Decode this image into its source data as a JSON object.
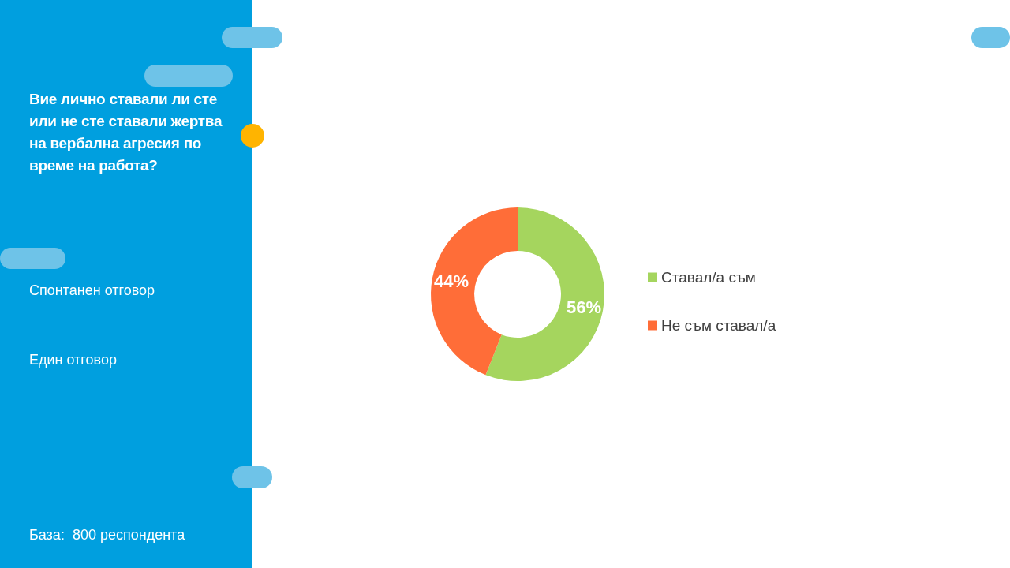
{
  "chart_data": {
    "type": "donut",
    "title": "Вие лично ставали ли сте или не сте ставали жертва на вербална агресия по време на работа?",
    "categories": [
      "Ставал/а съм",
      "Не съм ставал/а"
    ],
    "values": [
      56,
      44
    ],
    "colors": [
      "#a5d55e",
      "#ff6d38"
    ],
    "value_labels": [
      "56%",
      "44%"
    ],
    "legend": "right",
    "annotations": [
      "Спонтанен отговор",
      "Един отговор",
      "База:  800 респондента"
    ]
  }
}
